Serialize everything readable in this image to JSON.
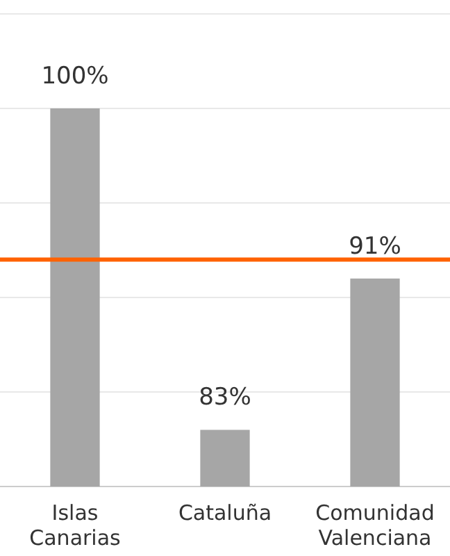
{
  "chart_data": {
    "type": "bar",
    "categories": [
      "Islas Canarias",
      "Cataluña",
      "Comunidad Valenciana"
    ],
    "values": [
      100,
      83,
      91
    ],
    "color": "#a6a6a6",
    "value_labels": [
      "100%",
      "83%",
      "91%"
    ],
    "ylim": [
      80,
      105
    ],
    "yticks": [
      {
        "value": 80,
        "label": null
      },
      {
        "value": 85,
        "label": null
      },
      {
        "value": 90,
        "label": null
      },
      {
        "value": 95,
        "label": null
      },
      {
        "value": 100,
        "label": null
      },
      {
        "value": 105,
        "label": null
      }
    ],
    "grid": "y",
    "tick_labels": "x",
    "ref_lines": [
      {
        "axis": "y",
        "value": 92,
        "color": "#ff6200"
      }
    ]
  }
}
